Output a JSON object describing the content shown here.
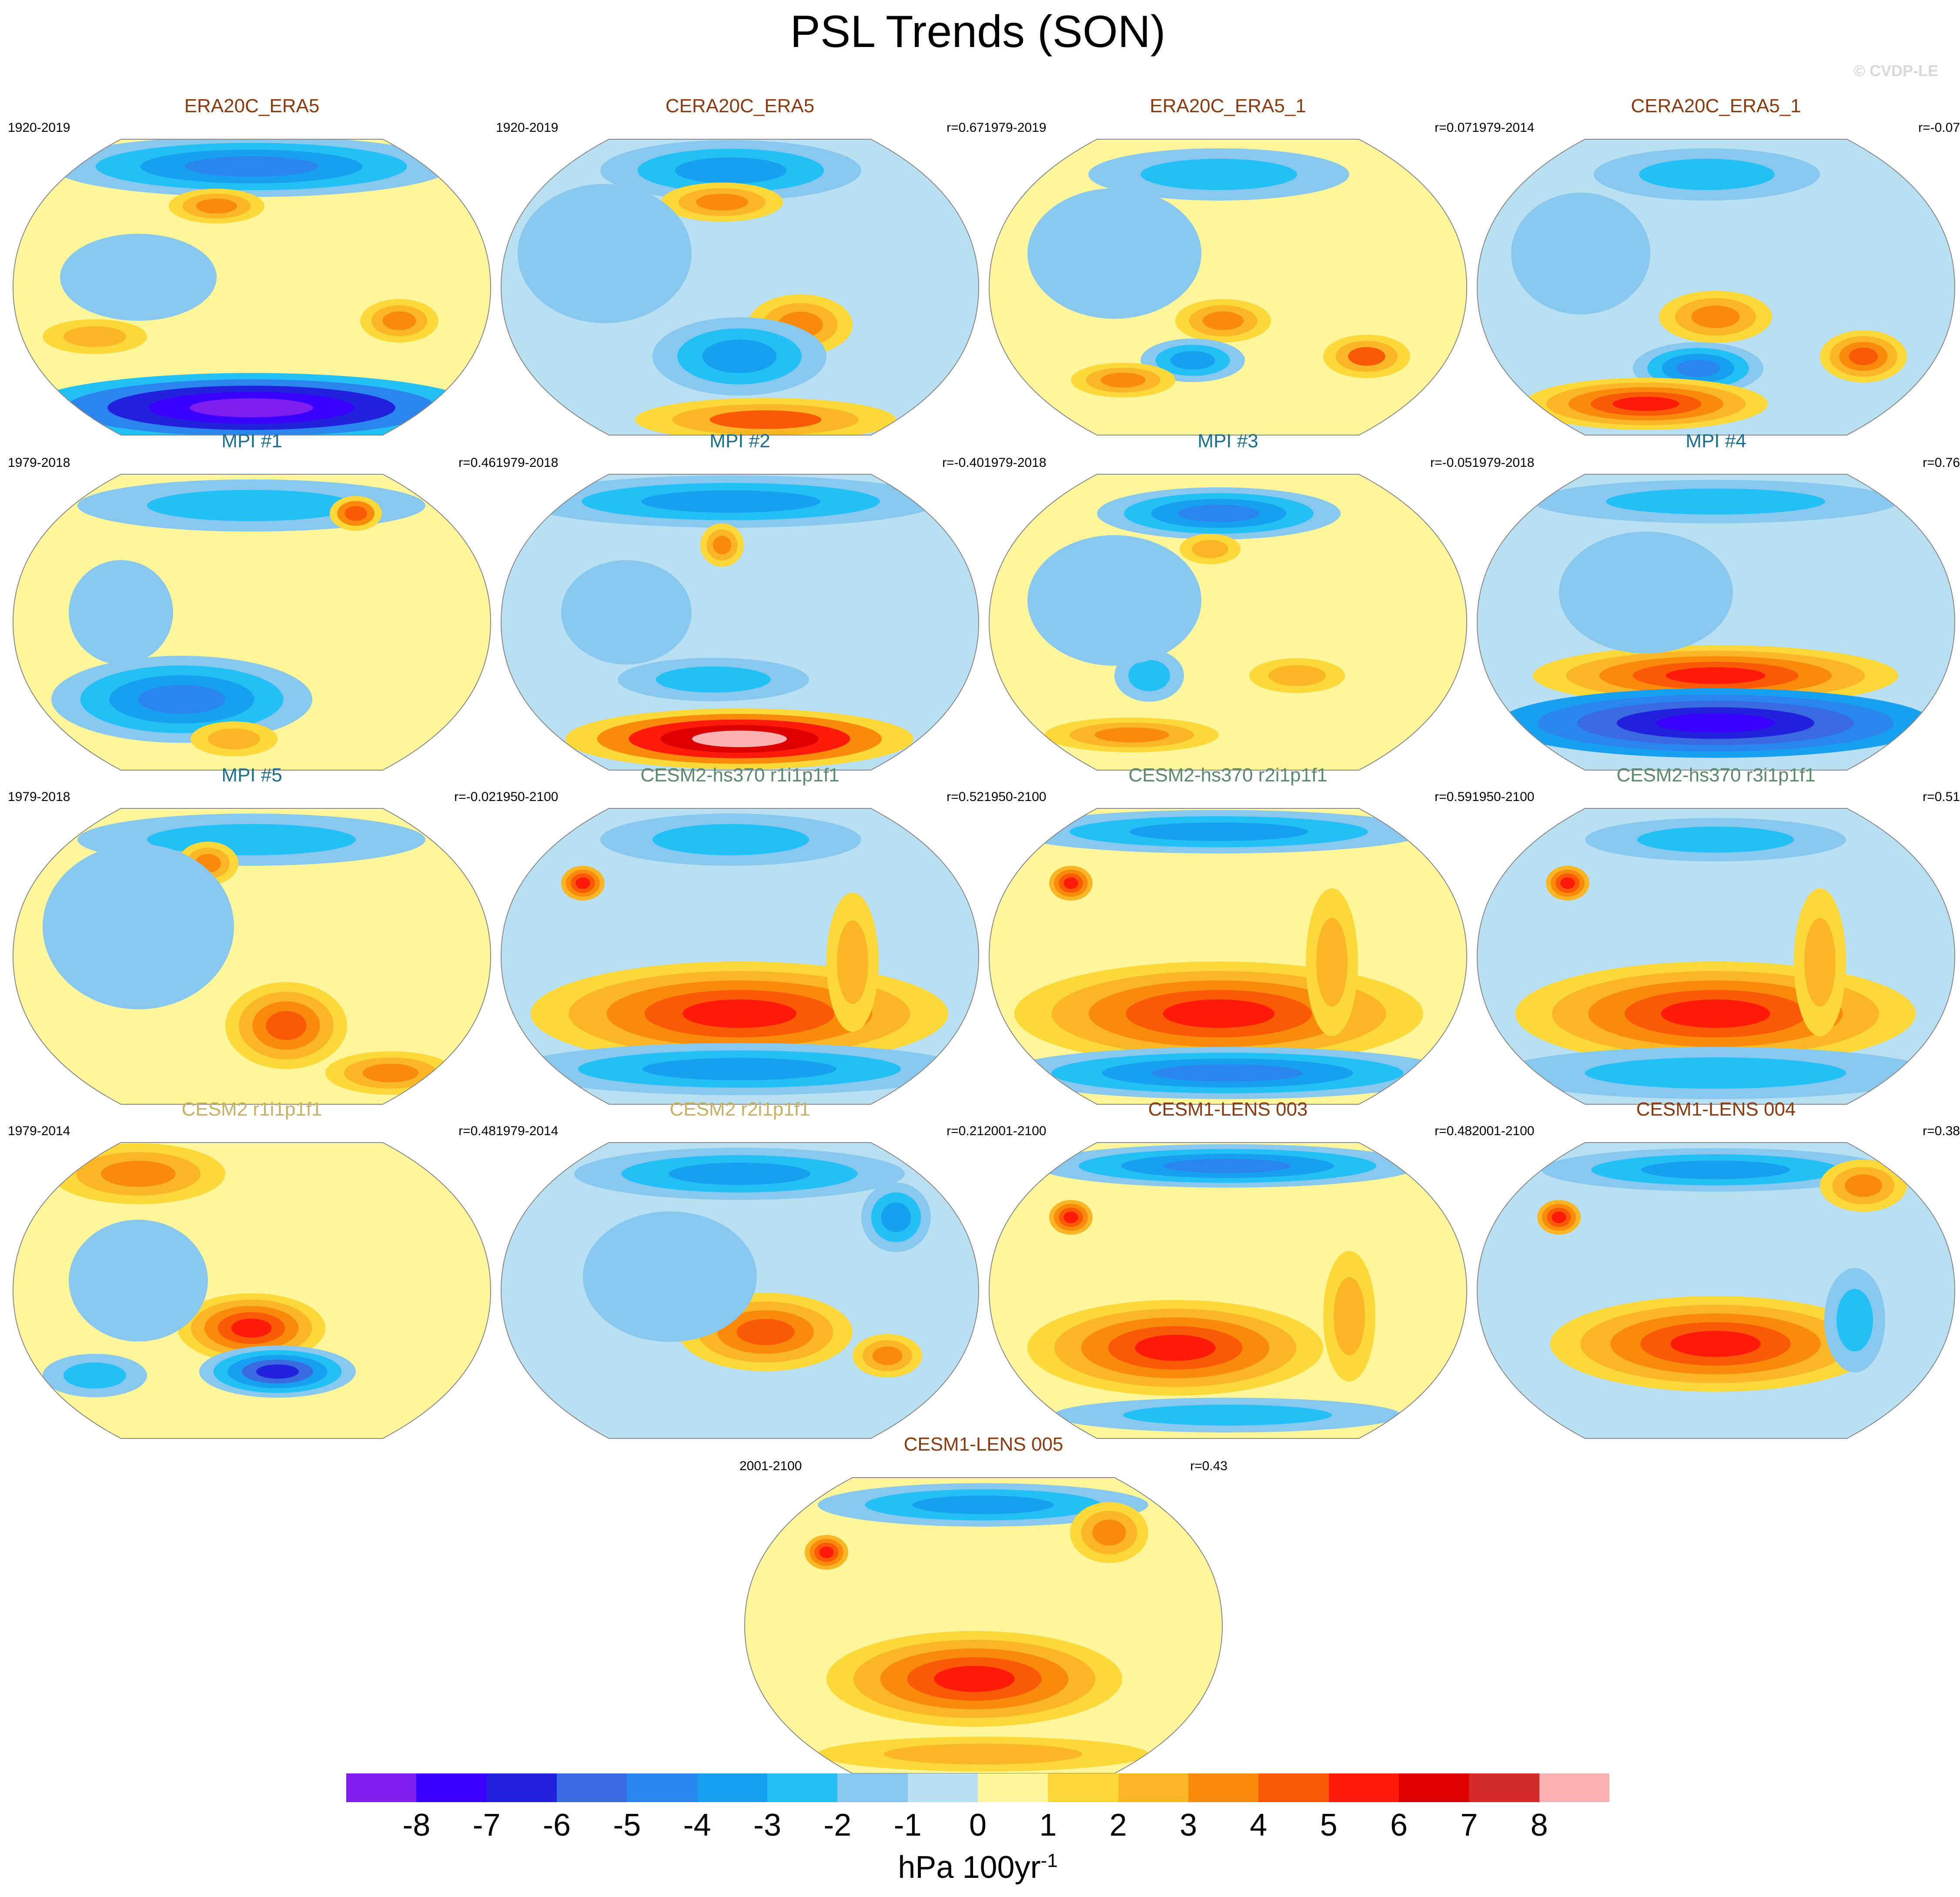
{
  "title": "PSL Trends (SON)",
  "copyright": "© CVDP-LE",
  "colorbar": {
    "colors": [
      "#7f1fef",
      "#3a00ff",
      "#2222dd",
      "#3a6ae0",
      "#2a85ee",
      "#17a0f0",
      "#22c0f5",
      "#88c8ee",
      "#b8dff2",
      "#fff59a",
      "#fcd838",
      "#fbb626",
      "#f98a0c",
      "#fa5a05",
      "#ff1a0a",
      "#dd0000",
      "#d42a2a",
      "#ffb0b0"
    ],
    "ticks": [
      "-8",
      "-7",
      "-6",
      "-5",
      "-4",
      "-3",
      "-2",
      "-1",
      "0",
      "1",
      "2",
      "3",
      "4",
      "5",
      "6",
      "7",
      "8"
    ],
    "units_base": "hPa 100yr",
    "units_exp": "-1"
  },
  "panels": [
    {
      "title": "ERA20C_ERA5",
      "years": "1920-2019",
      "r": "",
      "color": "#8b3a0f"
    },
    {
      "title": "CERA20C_ERA5",
      "years": "1920-2019",
      "r": "r=0.67",
      "color": "#8b3a0f"
    },
    {
      "title": "ERA20C_ERA5_1",
      "years": "1979-2019",
      "r": "r=0.07",
      "color": "#8b3a0f"
    },
    {
      "title": "CERA20C_ERA5_1",
      "years": "1979-2014",
      "r": "r=-0.07",
      "color": "#8b3a0f"
    },
    {
      "title": "MPI #1",
      "years": "1979-2018",
      "r": "r=0.46",
      "color": "#1a6e8e"
    },
    {
      "title": "MPI #2",
      "years": "1979-2018",
      "r": "r=-0.40",
      "color": "#1a6e8e"
    },
    {
      "title": "MPI #3",
      "years": "1979-2018",
      "r": "r=-0.05",
      "color": "#1a6e8e"
    },
    {
      "title": "MPI #4",
      "years": "1979-2018",
      "r": "r=0.76",
      "color": "#1a6e8e"
    },
    {
      "title": "MPI #5",
      "years": "1979-2018",
      "r": "r=-0.02",
      "color": "#1a6e8e"
    },
    {
      "title": "CESM2-hs370 r1i1p1f1",
      "years": "1950-2100",
      "r": "r=0.52",
      "color": "#5a8a6a"
    },
    {
      "title": "CESM2-hs370 r2i1p1f1",
      "years": "1950-2100",
      "r": "r=0.59",
      "color": "#5a8a6a"
    },
    {
      "title": "CESM2-hs370 r3i1p1f1",
      "years": "1950-2100",
      "r": "r=0.51",
      "color": "#5a8a6a"
    },
    {
      "title": "CESM2 r1i1p1f1",
      "years": "1979-2014",
      "r": "r=0.48",
      "color": "#c8b060"
    },
    {
      "title": "CESM2 r2i1p1f1",
      "years": "1979-2014",
      "r": "r=0.21",
      "color": "#c8b060"
    },
    {
      "title": "CESM1-LENS 003",
      "years": "2001-2100",
      "r": "r=0.48",
      "color": "#8b3a0f"
    },
    {
      "title": "CESM1-LENS 004",
      "years": "2001-2100",
      "r": "r=0.38",
      "color": "#8b3a0f"
    },
    {
      "title": "CESM1-LENS 005",
      "years": "2001-2100",
      "r": "r=0.43",
      "color": "#8b3a0f"
    }
  ]
}
